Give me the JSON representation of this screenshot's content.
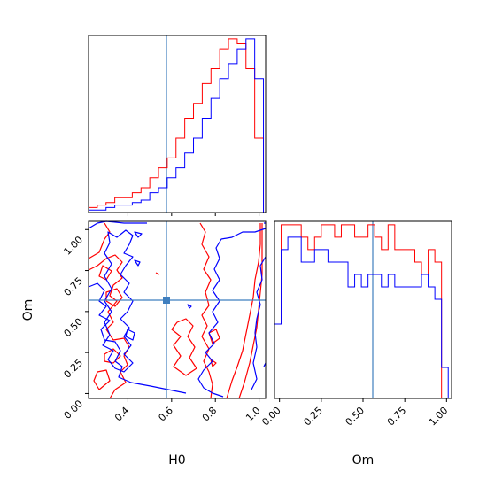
{
  "colors": {
    "series_red": "#ff0000",
    "series_blue": "#0000ff",
    "truth": "#3f7fbf"
  },
  "chart_data": [
    {
      "type": "histogram",
      "panel": "H0 marginal",
      "xlim": [
        0.22,
        1.03
      ],
      "truth": 0.58,
      "bins": [
        0.22,
        0.26,
        0.3,
        0.34,
        0.38,
        0.42,
        0.46,
        0.5,
        0.54,
        0.58,
        0.62,
        0.66,
        0.7,
        0.74,
        0.78,
        0.82,
        0.86,
        0.9,
        0.94,
        0.98,
        1.02
      ],
      "series": [
        {
          "values": [
            2,
            3,
            4,
            6,
            6,
            8,
            10,
            14,
            18,
            22,
            30,
            38,
            44,
            52,
            58,
            66,
            70,
            68,
            58,
            30
          ]
        },
        {
          "values": [
            1,
            1,
            2,
            3,
            3,
            4,
            5,
            8,
            10,
            14,
            18,
            24,
            30,
            38,
            46,
            54,
            60,
            66,
            70,
            54
          ]
        }
      ]
    },
    {
      "type": "contour",
      "panel": "H0 vs Om",
      "xlabel": "H0",
      "ylabel": "Om",
      "xlim": [
        0.22,
        1.03
      ],
      "ylim": [
        -0.03,
        1.05
      ],
      "xticks": [
        "0.4",
        "0.6",
        "0.8",
        "1.0"
      ],
      "yticks": [
        "0.00",
        "0.25",
        "0.50",
        "0.75",
        "1.00"
      ],
      "truth": {
        "x": 0.58,
        "y": 0.56
      }
    },
    {
      "type": "histogram",
      "panel": "Om marginal",
      "xlabel": "Om",
      "xlim": [
        -0.03,
        1.03
      ],
      "truth": 0.56,
      "xticks": [
        "0.00",
        "0.25",
        "0.50",
        "0.75",
        "1.00"
      ],
      "bins": [
        -0.03,
        0.01,
        0.05,
        0.09,
        0.13,
        0.17,
        0.21,
        0.25,
        0.29,
        0.33,
        0.37,
        0.41,
        0.45,
        0.49,
        0.53,
        0.57,
        0.61,
        0.65,
        0.69,
        0.73,
        0.77,
        0.81,
        0.85,
        0.89,
        0.93,
        0.97,
        1.01
      ],
      "series": [
        {
          "values": [
            12,
            28,
            28,
            28,
            26,
            24,
            26,
            28,
            28,
            26,
            28,
            28,
            26,
            26,
            28,
            26,
            24,
            28,
            24,
            24,
            24,
            22,
            20,
            24,
            22,
            0
          ]
        },
        {
          "values": [
            12,
            24,
            26,
            26,
            22,
            22,
            24,
            24,
            22,
            22,
            22,
            18,
            20,
            18,
            20,
            20,
            18,
            20,
            18,
            18,
            18,
            18,
            20,
            18,
            16,
            5
          ]
        }
      ]
    }
  ]
}
